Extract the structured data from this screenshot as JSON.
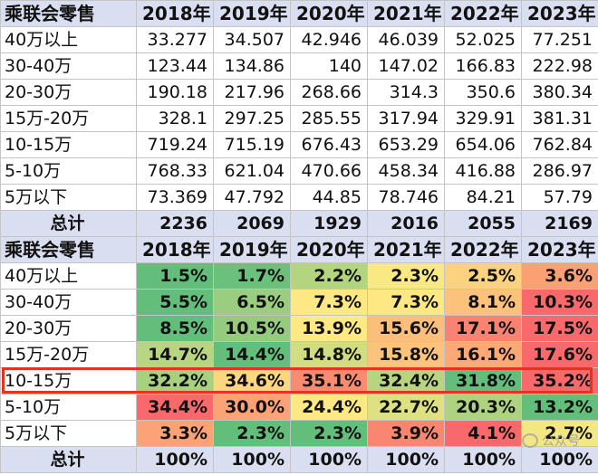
{
  "header_label": "乘联会零售",
  "years": [
    "2018年",
    "2019年",
    "2020年",
    "2021年",
    "2022年",
    "2023年"
  ],
  "total_label": "总计",
  "volume_rows": [
    {
      "label": "40万以上",
      "values": [
        "33.277",
        "34.507",
        "42.946",
        "46.039",
        "52.025",
        "77.251"
      ]
    },
    {
      "label": "30-40万",
      "values": [
        "123.44",
        "134.86",
        "140",
        "147.02",
        "166.83",
        "222.98"
      ]
    },
    {
      "label": "20-30万",
      "values": [
        "190.18",
        "217.96",
        "268.66",
        "314.3",
        "350.6",
        "380.34"
      ]
    },
    {
      "label": "15万-20万",
      "values": [
        "328.1",
        "297.25",
        "285.55",
        "317.94",
        "329.91",
        "381.31"
      ]
    },
    {
      "label": "10-15万",
      "values": [
        "719.24",
        "715.19",
        "676.43",
        "653.29",
        "654.06",
        "762.84"
      ]
    },
    {
      "label": "5-10万",
      "values": [
        "768.33",
        "621.04",
        "470.66",
        "458.34",
        "416.88",
        "286.97"
      ]
    },
    {
      "label": "5万以下",
      "values": [
        "73.369",
        "47.792",
        "44.85",
        "78.746",
        "84.21",
        "57.79"
      ]
    }
  ],
  "volume_total": [
    "2236",
    "2069",
    "1929",
    "2016",
    "2055",
    "2169"
  ],
  "share_rows": [
    {
      "label": "40万以上",
      "values": [
        "1.5%",
        "1.7%",
        "2.2%",
        "2.3%",
        "2.5%",
        "3.6%"
      ],
      "colors": [
        "#63be7b",
        "#6bc07c",
        "#b4d580",
        "#f8e983",
        "#fcd27f",
        "#fb9f75"
      ]
    },
    {
      "label": "30-40万",
      "values": [
        "5.5%",
        "6.5%",
        "7.3%",
        "7.3%",
        "8.1%",
        "10.3%"
      ],
      "colors": [
        "#63be7b",
        "#9acd7f",
        "#fde883",
        "#fde883",
        "#fcc27c",
        "#f8696b"
      ]
    },
    {
      "label": "20-30万",
      "values": [
        "8.5%",
        "10.5%",
        "13.9%",
        "15.6%",
        "17.1%",
        "17.5%"
      ],
      "colors": [
        "#63be7b",
        "#94cb7e",
        "#fee983",
        "#fcbf7b",
        "#f98370",
        "#f8696b"
      ]
    },
    {
      "label": "15万-20万",
      "values": [
        "14.7%",
        "14.4%",
        "14.8%",
        "15.8%",
        "16.1%",
        "17.6%"
      ],
      "colors": [
        "#b8d681",
        "#63be7b",
        "#d0dd82",
        "#fcc37c",
        "#fca977",
        "#f8696b"
      ]
    },
    {
      "label": "10-15万",
      "values": [
        "32.2%",
        "34.6%",
        "35.1%",
        "32.4%",
        "31.8%",
        "35.2%"
      ],
      "colors": [
        "#a6d17f",
        "#fdd680",
        "#f98b71",
        "#b7d581",
        "#63be7b",
        "#f8696b"
      ]
    },
    {
      "label": "5-10万",
      "values": [
        "34.4%",
        "30.0%",
        "24.4%",
        "22.7%",
        "20.3%",
        "13.2%"
      ],
      "colors": [
        "#f8696b",
        "#fba276",
        "#fde983",
        "#dde182",
        "#aed380",
        "#63be7b"
      ]
    },
    {
      "label": "5万以下",
      "values": [
        "3.3%",
        "2.3%",
        "2.3%",
        "3.9%",
        "4.1%",
        "2.7%"
      ],
      "colors": [
        "#fba276",
        "#63be7b",
        "#63be7b",
        "#f98670",
        "#f8696b",
        "#f3e783"
      ]
    }
  ],
  "share_total": [
    "100%",
    "100%",
    "100%",
    "100%",
    "100%",
    "100%"
  ],
  "watermark": "公众号"
}
